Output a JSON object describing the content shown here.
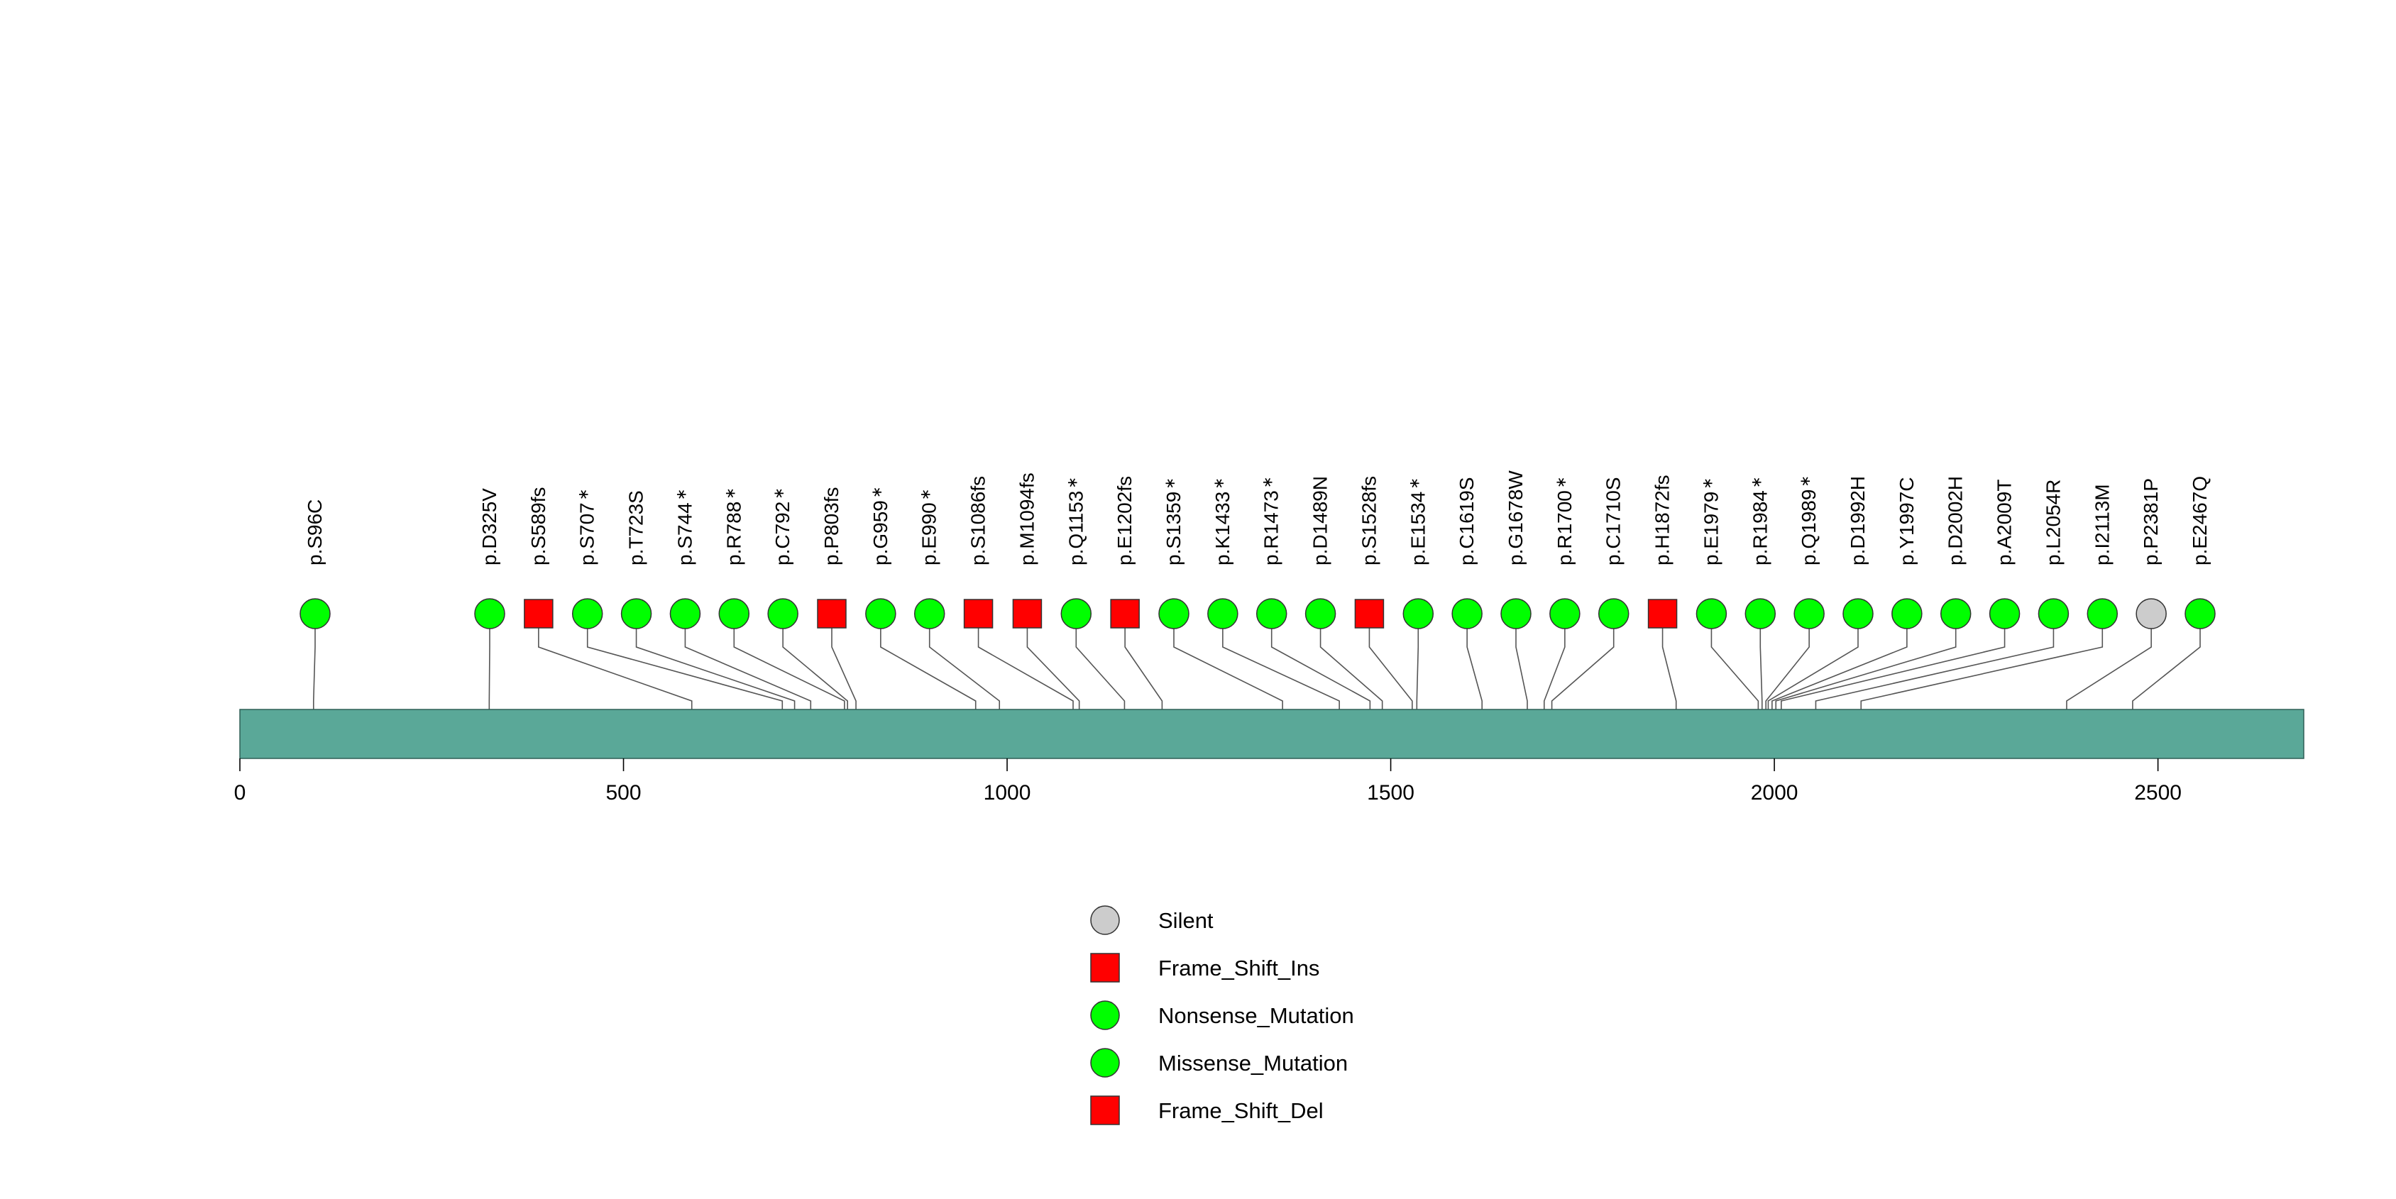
{
  "chart_data": {
    "type": "lollipop",
    "title": "",
    "xlabel": "",
    "ylabel": "",
    "protein_length": 2690,
    "xlim": [
      0,
      2690
    ],
    "x_ticks": [
      0,
      500,
      1000,
      1500,
      2000,
      2500
    ],
    "domain_bar": {
      "start": 1,
      "end": 2690,
      "color": "#5aa898"
    },
    "colors": {
      "Silent": "#cccccc",
      "Frame_Shift_Ins": "#ff0000",
      "Nonsense_Mutation": "#00ff00",
      "Missense_Mutation": "#00ff00",
      "Frame_Shift_Del": "#ff0000"
    },
    "mutations": [
      {
        "label": "p.S96C",
        "position": 96,
        "type": "Missense_Mutation",
        "shape": "circle",
        "star": false
      },
      {
        "label": "p.D325V",
        "position": 325,
        "type": "Missense_Mutation",
        "shape": "circle",
        "star": false
      },
      {
        "label": "p.S589fs",
        "position": 589,
        "type": "Frame_Shift_Ins",
        "shape": "square",
        "star": false
      },
      {
        "label": "p.S707",
        "position": 707,
        "type": "Nonsense_Mutation",
        "shape": "circle",
        "star": true
      },
      {
        "label": "p.T723S",
        "position": 723,
        "type": "Missense_Mutation",
        "shape": "circle",
        "star": false
      },
      {
        "label": "p.S744",
        "position": 744,
        "type": "Nonsense_Mutation",
        "shape": "circle",
        "star": true
      },
      {
        "label": "p.R788",
        "position": 788,
        "type": "Nonsense_Mutation",
        "shape": "circle",
        "star": true
      },
      {
        "label": "p.C792",
        "position": 792,
        "type": "Nonsense_Mutation",
        "shape": "circle",
        "star": true
      },
      {
        "label": "p.P803fs",
        "position": 803,
        "type": "Frame_Shift_Del",
        "shape": "square",
        "star": false
      },
      {
        "label": "p.G959",
        "position": 959,
        "type": "Nonsense_Mutation",
        "shape": "circle",
        "star": true
      },
      {
        "label": "p.E990",
        "position": 990,
        "type": "Nonsense_Mutation",
        "shape": "circle",
        "star": true
      },
      {
        "label": "p.S1086fs",
        "position": 1086,
        "type": "Frame_Shift_Del",
        "shape": "square",
        "star": false
      },
      {
        "label": "p.M1094fs",
        "position": 1094,
        "type": "Frame_Shift_Del",
        "shape": "square",
        "star": false
      },
      {
        "label": "p.Q1153",
        "position": 1153,
        "type": "Nonsense_Mutation",
        "shape": "circle",
        "star": true
      },
      {
        "label": "p.E1202fs",
        "position": 1202,
        "type": "Frame_Shift_Del",
        "shape": "square",
        "star": false
      },
      {
        "label": "p.S1359",
        "position": 1359,
        "type": "Nonsense_Mutation",
        "shape": "circle",
        "star": true
      },
      {
        "label": "p.K1433",
        "position": 1433,
        "type": "Nonsense_Mutation",
        "shape": "circle",
        "star": true
      },
      {
        "label": "p.R1473",
        "position": 1473,
        "type": "Nonsense_Mutation",
        "shape": "circle",
        "star": true
      },
      {
        "label": "p.D1489N",
        "position": 1489,
        "type": "Missense_Mutation",
        "shape": "circle",
        "star": false
      },
      {
        "label": "p.S1528fs",
        "position": 1528,
        "type": "Frame_Shift_Del",
        "shape": "square",
        "star": false
      },
      {
        "label": "p.E1534",
        "position": 1534,
        "type": "Nonsense_Mutation",
        "shape": "circle",
        "star": true
      },
      {
        "label": "p.C1619S",
        "position": 1619,
        "type": "Missense_Mutation",
        "shape": "circle",
        "star": false
      },
      {
        "label": "p.G1678W",
        "position": 1678,
        "type": "Missense_Mutation",
        "shape": "circle",
        "star": false
      },
      {
        "label": "p.R1700",
        "position": 1700,
        "type": "Nonsense_Mutation",
        "shape": "circle",
        "star": true
      },
      {
        "label": "p.C1710S",
        "position": 1710,
        "type": "Missense_Mutation",
        "shape": "circle",
        "star": false
      },
      {
        "label": "p.H1872fs",
        "position": 1872,
        "type": "Frame_Shift_Ins",
        "shape": "square",
        "star": false
      },
      {
        "label": "p.E1979",
        "position": 1979,
        "type": "Nonsense_Mutation",
        "shape": "circle",
        "star": true
      },
      {
        "label": "p.R1984",
        "position": 1984,
        "type": "Nonsense_Mutation",
        "shape": "circle",
        "star": true
      },
      {
        "label": "p.Q1989",
        "position": 1989,
        "type": "Nonsense_Mutation",
        "shape": "circle",
        "star": true
      },
      {
        "label": "p.D1992H",
        "position": 1992,
        "type": "Missense_Mutation",
        "shape": "circle",
        "star": false
      },
      {
        "label": "p.Y1997C",
        "position": 1997,
        "type": "Missense_Mutation",
        "shape": "circle",
        "star": false
      },
      {
        "label": "p.D2002H",
        "position": 2002,
        "type": "Missense_Mutation",
        "shape": "circle",
        "star": false
      },
      {
        "label": "p.A2009T",
        "position": 2009,
        "type": "Missense_Mutation",
        "shape": "circle",
        "star": false
      },
      {
        "label": "p.L2054R",
        "position": 2054,
        "type": "Missense_Mutation",
        "shape": "circle",
        "star": false
      },
      {
        "label": "p.I2113M",
        "position": 2113,
        "type": "Missense_Mutation",
        "shape": "circle",
        "star": false
      },
      {
        "label": "p.P2381P",
        "position": 2381,
        "type": "Silent",
        "shape": "circle",
        "star": false
      },
      {
        "label": "p.E2467Q",
        "position": 2467,
        "type": "Missense_Mutation",
        "shape": "circle",
        "star": false
      }
    ],
    "legend": {
      "placement": "bottom-center",
      "entries": [
        {
          "label": "Silent",
          "shape": "circle",
          "color": "#cccccc"
        },
        {
          "label": "Frame_Shift_Ins",
          "shape": "square",
          "color": "#ff0000"
        },
        {
          "label": "Nonsense_Mutation",
          "shape": "circle",
          "color": "#00ff00"
        },
        {
          "label": "Missense_Mutation",
          "shape": "circle",
          "color": "#00ff00"
        },
        {
          "label": "Frame_Shift_Del",
          "shape": "square",
          "color": "#ff0000"
        }
      ]
    }
  }
}
